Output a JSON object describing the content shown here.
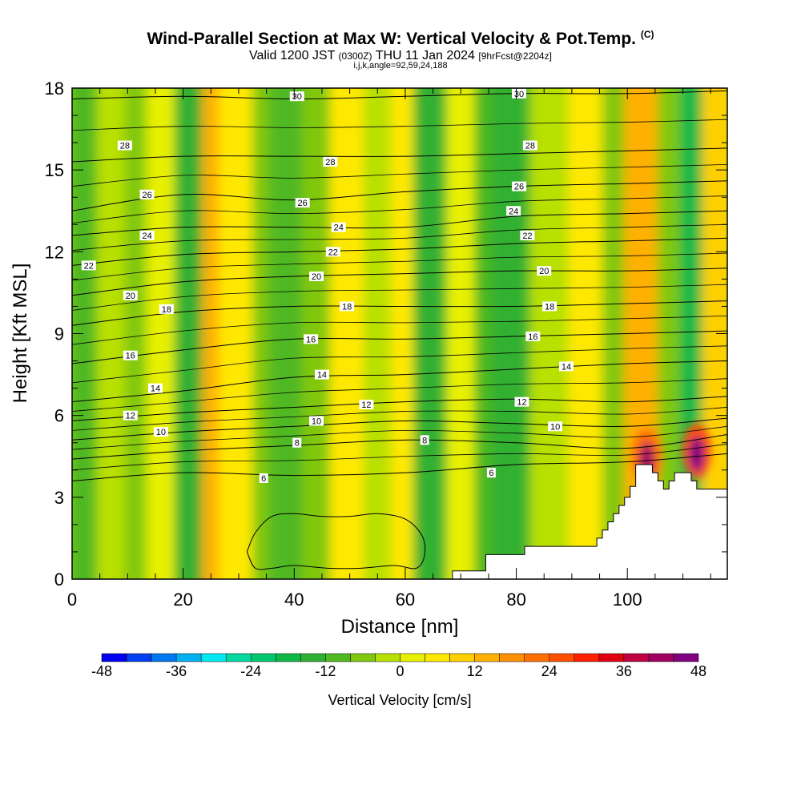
{
  "title": {
    "main": "Wind-Parallel Section at Max W: Vertical Velocity & Pot.Temp.",
    "copyright": "(C)",
    "valid_prefix": "Valid 1200 JST",
    "utc": "(0300Z)",
    "valid_suffix": "THU 11 Jan 2024",
    "forecast": "[9hrFcst@2204z]",
    "section_params": "i,j,k,angle=92,59,24,188"
  },
  "chart_data": {
    "type": "heatmap",
    "xlabel": "Distance [nm]",
    "ylabel": "Height [Kft MSL]",
    "xlim": [
      0,
      118
    ],
    "ylim": [
      0,
      18
    ],
    "x_ticks": [
      0,
      20,
      40,
      60,
      80,
      100
    ],
    "y_ticks": [
      0,
      3,
      6,
      9,
      12,
      15,
      18
    ],
    "x_tick_labels": [
      "0",
      "20",
      "40",
      "60",
      "80",
      "100"
    ],
    "y_tick_labels": [
      "0",
      "3",
      "6",
      "9",
      "12",
      "15",
      "18"
    ],
    "field": "Vertical Velocity",
    "contour_field": "Potential temperature",
    "colorbar": {
      "title": "Vertical Velocity [cm/s]",
      "levels": [
        -48,
        -44,
        -40,
        -36,
        -32,
        -28,
        -24,
        -20,
        -16,
        -12,
        -8,
        -4,
        0,
        4,
        8,
        12,
        16,
        20,
        24,
        28,
        32,
        36,
        40,
        44,
        48
      ],
      "tick_values": [
        -48,
        -36,
        -24,
        -12,
        0,
        12,
        24,
        36,
        48
      ],
      "tick_labels": [
        "-48",
        "-36",
        "-24",
        "-12",
        "0",
        "12",
        "24",
        "36",
        "48"
      ],
      "colors": [
        "#0000ee",
        "#0040f0",
        "#0078f0",
        "#00b0f0",
        "#00e8f0",
        "#00d8a0",
        "#00c870",
        "#10b848",
        "#30b030",
        "#50b820",
        "#80c810",
        "#b8e000",
        "#e8f000",
        "#ffe800",
        "#ffd000",
        "#ffb000",
        "#ff9000",
        "#ff7000",
        "#ff5000",
        "#ff2000",
        "#e00010",
        "#c00040",
        "#a00060",
        "#800080"
      ]
    },
    "vertical_velocity_bands": [
      {
        "x": [
          0,
          5
        ],
        "value": -10
      },
      {
        "x": [
          5,
          10
        ],
        "value": -4
      },
      {
        "x": [
          10,
          14
        ],
        "value": -8
      },
      {
        "x": [
          14,
          19
        ],
        "value": 2
      },
      {
        "x": [
          19,
          24
        ],
        "value": -14
      },
      {
        "x": [
          24,
          27
        ],
        "value": 12
      },
      {
        "x": [
          27,
          33
        ],
        "value": 4
      },
      {
        "x": [
          33,
          36
        ],
        "value": -8
      },
      {
        "x": [
          36,
          42
        ],
        "value": -10
      },
      {
        "x": [
          42,
          47
        ],
        "value": -6
      },
      {
        "x": [
          47,
          53
        ],
        "value": 4
      },
      {
        "x": [
          53,
          58
        ],
        "value": -4
      },
      {
        "x": [
          58,
          62
        ],
        "value": 6
      },
      {
        "x": [
          62,
          68
        ],
        "value": -14
      },
      {
        "x": [
          68,
          73
        ],
        "value": 2
      },
      {
        "x": [
          73,
          76
        ],
        "value": -10
      },
      {
        "x": [
          76,
          83
        ],
        "value": -16
      },
      {
        "x": [
          83,
          90
        ],
        "value": -4
      },
      {
        "x": [
          90,
          96
        ],
        "value": 4
      },
      {
        "x": [
          96,
          100
        ],
        "value": -8
      },
      {
        "x": [
          100,
          106
        ],
        "value": 14
      },
      {
        "x": [
          106,
          110
        ],
        "value": -6
      },
      {
        "x": [
          110,
          114
        ],
        "value": -20
      },
      {
        "x": [
          114,
          118
        ],
        "value": 10
      }
    ],
    "updraft_cores": [
      {
        "x": 103.5,
        "y": 4.5,
        "value": 40
      },
      {
        "x": 112.5,
        "y": 4.7,
        "value": 48
      }
    ],
    "terrain": {
      "x": [
        68.5,
        68.5,
        74.5,
        74.5,
        81.5,
        81.5,
        94.5,
        94.5,
        95.5,
        95.5,
        96.5,
        96.5,
        97.5,
        97.5,
        98.5,
        98.5,
        99.5,
        99.5,
        100.5,
        100.5,
        101.5,
        101.5,
        104.5,
        104.5,
        105.5,
        105.5,
        106.5,
        106.5,
        107.5,
        107.5,
        108.5,
        108.5,
        111.5,
        111.5,
        112.5,
        112.5,
        118
      ],
      "y": [
        0.3,
        0.3,
        0.3,
        0.9,
        0.9,
        1.2,
        1.2,
        1.5,
        1.5,
        1.8,
        1.8,
        2.1,
        2.1,
        2.4,
        2.4,
        2.7,
        2.7,
        3.0,
        3.0,
        3.4,
        3.4,
        4.2,
        4.2,
        3.9,
        3.9,
        3.6,
        3.6,
        3.3,
        3.3,
        3.6,
        3.6,
        3.9,
        3.9,
        3.6,
        3.6,
        3.3,
        3.3
      ]
    },
    "theta_contours": [
      {
        "level": 6,
        "x": [
          0,
          20,
          40,
          60,
          80,
          100,
          118
        ],
        "y": [
          3.6,
          3.9,
          3.8,
          3.9,
          4.2,
          4.3,
          4.6
        ]
      },
      {
        "level": 8,
        "x": [
          0,
          20,
          40,
          60,
          80,
          100,
          118
        ],
        "y": [
          4.4,
          4.7,
          4.9,
          5.1,
          5.0,
          4.8,
          5.3
        ]
      },
      {
        "level": 10,
        "x": [
          0,
          20,
          40,
          60,
          80,
          100,
          118
        ],
        "y": [
          5.1,
          5.4,
          5.6,
          5.8,
          5.7,
          5.6,
          5.9
        ]
      },
      {
        "level": 12,
        "x": [
          0,
          20,
          40,
          60,
          80,
          100,
          118
        ],
        "y": [
          5.8,
          6.1,
          6.3,
          6.5,
          6.6,
          6.5,
          6.7
        ]
      },
      {
        "level": 14,
        "x": [
          0,
          20,
          40,
          60,
          80,
          100,
          118
        ],
        "y": [
          6.5,
          6.9,
          7.4,
          7.5,
          7.7,
          7.9,
          8.0
        ]
      },
      {
        "level": 16,
        "x": [
          0,
          20,
          40,
          60,
          80,
          100,
          118
        ],
        "y": [
          7.9,
          8.4,
          8.8,
          8.8,
          8.9,
          9.0,
          9.1
        ]
      },
      {
        "level": 18,
        "x": [
          0,
          20,
          40,
          60,
          80,
          100,
          118
        ],
        "y": [
          9.3,
          9.8,
          10.0,
          10.0,
          10.0,
          10.1,
          10.2
        ]
      },
      {
        "level": 20,
        "x": [
          0,
          20,
          40,
          60,
          80,
          100,
          118
        ],
        "y": [
          10.4,
          10.9,
          11.1,
          11.2,
          11.3,
          11.3,
          11.4
        ]
      },
      {
        "level": 22,
        "x": [
          0,
          20,
          40,
          60,
          80,
          100,
          118
        ],
        "y": [
          11.5,
          11.9,
          12.0,
          12.1,
          12.3,
          12.4,
          12.5
        ]
      },
      {
        "level": 24,
        "x": [
          0,
          20,
          40,
          60,
          80,
          100,
          118
        ],
        "y": [
          12.6,
          12.9,
          12.9,
          12.9,
          13.3,
          13.4,
          13.5
        ]
      },
      {
        "level": 26,
        "x": [
          0,
          20,
          40,
          60,
          80,
          100,
          118
        ],
        "y": [
          13.5,
          14.1,
          13.9,
          14.2,
          14.4,
          14.5,
          14.6
        ]
      },
      {
        "level": 28,
        "x": [
          0,
          20,
          40,
          60,
          80,
          100,
          118
        ],
        "y": [
          15.3,
          15.5,
          15.5,
          15.5,
          15.6,
          15.7,
          15.8
        ]
      },
      {
        "level": 30,
        "x": [
          0,
          20,
          40,
          60,
          80,
          100,
          118
        ],
        "y": [
          17.6,
          17.7,
          17.6,
          17.7,
          17.8,
          17.8,
          17.9
        ]
      }
    ],
    "contour_labels": [
      {
        "text": "30",
        "x": 40.5,
        "y": 17.7
      },
      {
        "text": "30",
        "x": 80.5,
        "y": 17.8
      },
      {
        "text": "28",
        "x": 9.5,
        "y": 15.9
      },
      {
        "text": "28",
        "x": 46.5,
        "y": 15.3
      },
      {
        "text": "28",
        "x": 82.5,
        "y": 15.9
      },
      {
        "text": "26",
        "x": 13.5,
        "y": 14.1
      },
      {
        "text": "26",
        "x": 41.5,
        "y": 13.8
      },
      {
        "text": "26",
        "x": 80.5,
        "y": 14.4
      },
      {
        "text": "24",
        "x": 13.5,
        "y": 12.6
      },
      {
        "text": "24",
        "x": 48.0,
        "y": 12.9
      },
      {
        "text": "24",
        "x": 79.5,
        "y": 13.5
      },
      {
        "text": "22",
        "x": 3.0,
        "y": 11.5
      },
      {
        "text": "22",
        "x": 47.0,
        "y": 12.0
      },
      {
        "text": "22",
        "x": 82.0,
        "y": 12.6
      },
      {
        "text": "20",
        "x": 10.5,
        "y": 10.4
      },
      {
        "text": "20",
        "x": 44.0,
        "y": 11.1
      },
      {
        "text": "20",
        "x": 85.0,
        "y": 11.3
      },
      {
        "text": "18",
        "x": 17.0,
        "y": 9.9
      },
      {
        "text": "18",
        "x": 49.5,
        "y": 10.0
      },
      {
        "text": "18",
        "x": 86.0,
        "y": 10.0
      },
      {
        "text": "16",
        "x": 10.5,
        "y": 8.2
      },
      {
        "text": "16",
        "x": 43.0,
        "y": 8.8
      },
      {
        "text": "16",
        "x": 83.0,
        "y": 8.9
      },
      {
        "text": "14",
        "x": 15.0,
        "y": 7.0
      },
      {
        "text": "14",
        "x": 45.0,
        "y": 7.5
      },
      {
        "text": "14",
        "x": 89.0,
        "y": 7.8
      },
      {
        "text": "12",
        "x": 10.5,
        "y": 6.0
      },
      {
        "text": "12",
        "x": 53.0,
        "y": 6.4
      },
      {
        "text": "12",
        "x": 81.0,
        "y": 6.5
      },
      {
        "text": "10",
        "x": 16.0,
        "y": 5.4
      },
      {
        "text": "10",
        "x": 44.0,
        "y": 5.8
      },
      {
        "text": "10",
        "x": 87.0,
        "y": 5.6
      },
      {
        "text": "8",
        "x": 40.5,
        "y": 5.0
      },
      {
        "text": "8",
        "x": 63.5,
        "y": 5.1
      },
      {
        "text": "6",
        "x": 34.5,
        "y": 3.7
      },
      {
        "text": "6",
        "x": 75.5,
        "y": 3.9
      }
    ],
    "theta_low_contour": {
      "level": 4,
      "x": [
        31.5,
        33,
        36,
        40,
        45,
        50,
        55,
        60,
        63,
        63.5,
        62,
        58,
        52,
        46,
        40,
        36,
        33,
        31.5
      ],
      "y": [
        1.0,
        1.7,
        2.3,
        2.4,
        2.3,
        2.3,
        2.4,
        2.2,
        1.6,
        0.9,
        0.4,
        0.5,
        0.4,
        0.4,
        0.5,
        0.4,
        0.4,
        1.0
      ]
    }
  }
}
